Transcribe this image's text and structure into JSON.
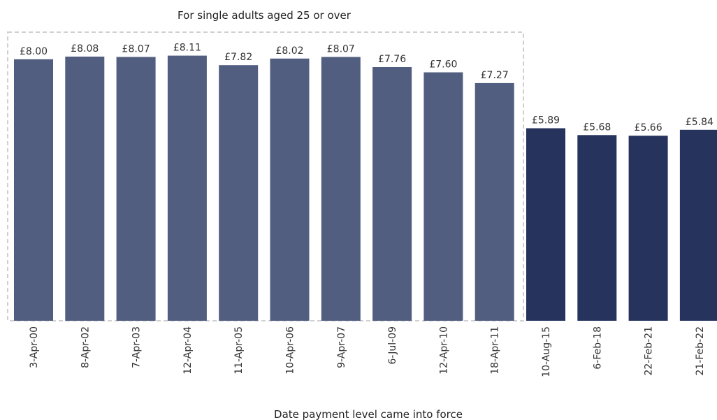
{
  "chart_data": {
    "type": "bar",
    "title": "For single adults aged 25 or over",
    "xlabel": "Date payment level came into force",
    "ylabel": "",
    "ylim": [
      0,
      9
    ],
    "grid": false,
    "categories": [
      "3-Apr-00",
      "8-Apr-02",
      "7-Apr-03",
      "12-Apr-04",
      "11-Apr-05",
      "10-Apr-06",
      "9-Apr-07",
      "6-Jul-09",
      "12-Apr-10",
      "18-Apr-11",
      "10-Aug-15",
      "6-Feb-18",
      "22-Feb-21",
      "21-Feb-22"
    ],
    "values": [
      8.0,
      8.08,
      8.07,
      8.11,
      7.82,
      8.02,
      8.07,
      7.76,
      7.6,
      7.27,
      5.89,
      5.68,
      5.66,
      5.84
    ],
    "value_labels": [
      "£8.00",
      "£8.08",
      "£8.07",
      "£8.11",
      "£7.82",
      "£8.02",
      "£8.07",
      "£7.76",
      "£7.60",
      "£7.27",
      "£5.89",
      "£5.68",
      "£5.66",
      "£5.84"
    ],
    "highlighted_range": [
      "3-Apr-00",
      "18-Apr-11"
    ],
    "colors": {
      "highlighted": "#525e80",
      "normal": "#26335c",
      "highlight_border": "#d0d0d0"
    }
  }
}
